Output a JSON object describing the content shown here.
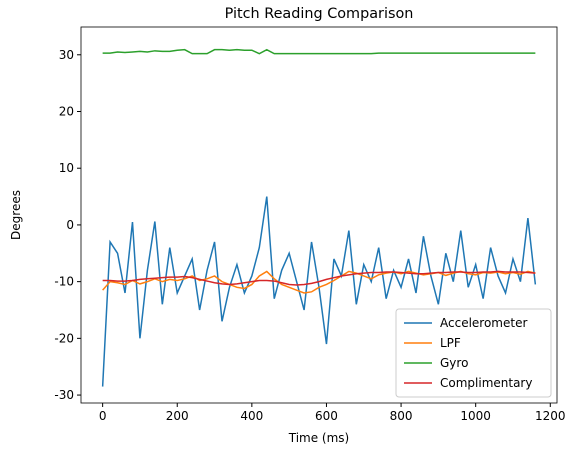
{
  "chart_data": {
    "type": "line",
    "title": "Pitch Reading Comparison",
    "x_label": "Time (ms)",
    "y_label": "Degrees",
    "x": [
      0,
      20,
      40,
      60,
      80,
      100,
      120,
      140,
      160,
      180,
      200,
      220,
      240,
      260,
      280,
      300,
      320,
      340,
      360,
      380,
      400,
      420,
      440,
      460,
      480,
      500,
      520,
      540,
      560,
      580,
      600,
      620,
      640,
      660,
      680,
      700,
      720,
      740,
      760,
      780,
      800,
      820,
      840,
      860,
      880,
      900,
      920,
      940,
      960,
      980,
      1000,
      1020,
      1040,
      1060,
      1080,
      1100,
      1120,
      1140,
      1160
    ],
    "series": [
      {
        "name": "Accelerometer",
        "color": "#1f77b4",
        "values": [
          -28.5,
          -3,
          -5,
          -12,
          0.5,
          -20,
          -8,
          0.6,
          -14,
          -4,
          -12,
          -9,
          -6,
          -15,
          -8,
          -3,
          -17,
          -11,
          -7,
          -12,
          -9,
          -4,
          5,
          -13,
          -8,
          -5,
          -10,
          -15,
          -3,
          -11,
          -21,
          -6,
          -9,
          -1,
          -14,
          -7,
          -10,
          -4,
          -13,
          -8,
          -11,
          -6,
          -12,
          -2,
          -9,
          -14,
          -5,
          -10,
          -1,
          -11,
          -7,
          -13,
          -4,
          -9,
          -12,
          -6,
          -10,
          1.2,
          -10.5
        ]
      },
      {
        "name": "LPF",
        "color": "#ff7f0e",
        "values": [
          -11.5,
          -10,
          -10.2,
          -10.5,
          -9.8,
          -10.4,
          -10,
          -9.5,
          -10,
          -9.6,
          -9.8,
          -9.5,
          -9,
          -9.8,
          -9.5,
          -9,
          -10,
          -10.5,
          -11,
          -11.2,
          -10.5,
          -9,
          -8.2,
          -9.5,
          -10.5,
          -11,
          -11.5,
          -12,
          -11.8,
          -11,
          -10.5,
          -9.8,
          -9,
          -8.2,
          -8.5,
          -9,
          -9.5,
          -8.8,
          -8.5,
          -8.3,
          -8.6,
          -8.2,
          -8.5,
          -8.8,
          -8.6,
          -8.4,
          -8.9,
          -8.5,
          -8.2,
          -8.6,
          -8.8,
          -8.4,
          -8.5,
          -8.3,
          -8.6,
          -8.4,
          -8.7,
          -8.2,
          -8.5
        ]
      },
      {
        "name": "Gyro",
        "color": "#2ca02c",
        "values": [
          30.3,
          30.3,
          30.5,
          30.4,
          30.5,
          30.6,
          30.5,
          30.7,
          30.6,
          30.6,
          30.8,
          30.9,
          30.2,
          30.2,
          30.2,
          30.9,
          30.9,
          30.8,
          30.9,
          30.8,
          30.8,
          30.2,
          30.9,
          30.2,
          30.2,
          30.2,
          30.2,
          30.2,
          30.2,
          30.2,
          30.2,
          30.2,
          30.2,
          30.2,
          30.2,
          30.2,
          30.2,
          30.3,
          30.3,
          30.3,
          30.3,
          30.3,
          30.3,
          30.3,
          30.3,
          30.3,
          30.3,
          30.3,
          30.3,
          30.3,
          30.3,
          30.3,
          30.3,
          30.3,
          30.3,
          30.3,
          30.3,
          30.3,
          30.3
        ]
      },
      {
        "name": "Complimentary",
        "color": "#d62728",
        "values": [
          -9.8,
          -9.8,
          -9.9,
          -9.9,
          -9.8,
          -9.6,
          -9.5,
          -9.4,
          -9.3,
          -9.2,
          -9.2,
          -9.1,
          -9.3,
          -9.6,
          -9.9,
          -10.2,
          -10.4,
          -10.5,
          -10.4,
          -10.2,
          -10,
          -9.8,
          -9.8,
          -9.9,
          -10.2,
          -10.5,
          -10.6,
          -10.5,
          -10.3,
          -10,
          -9.6,
          -9.3,
          -9,
          -8.8,
          -8.6,
          -8.5,
          -8.4,
          -8.4,
          -8.3,
          -8.3,
          -8.4,
          -8.5,
          -8.6,
          -8.6,
          -8.5,
          -8.4,
          -8.4,
          -8.3,
          -8.3,
          -8.4,
          -8.4,
          -8.3,
          -8.3,
          -8.2,
          -8.3,
          -8.3,
          -8.3,
          -8.4,
          -8.5
        ]
      }
    ],
    "xlim": [
      -58,
      1218
    ],
    "ylim": [
      -31.4,
      34.9
    ],
    "xticks": [
      0,
      200,
      400,
      600,
      800,
      1000,
      1200
    ],
    "yticks": [
      -30,
      -20,
      -10,
      0,
      10,
      20,
      30
    ],
    "legend": "lower right"
  }
}
